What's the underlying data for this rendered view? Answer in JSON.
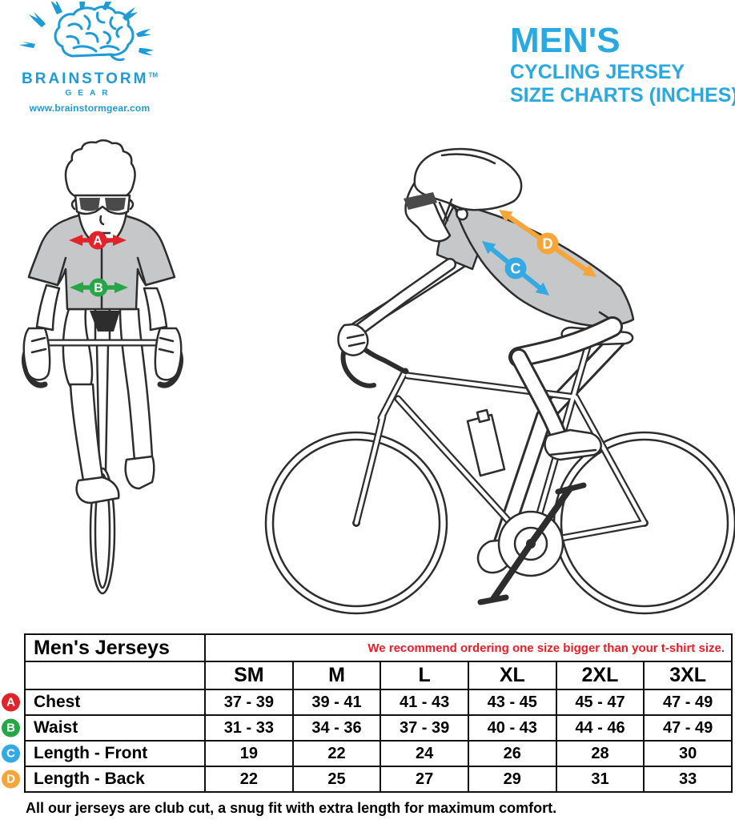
{
  "logo": {
    "brand": "BRAINSTORM",
    "tm": "TM",
    "gear": "GEAR",
    "url": "www.brainstormgear.com"
  },
  "title": {
    "line1": "MEN'S",
    "line2": "CYCLING JERSEY",
    "line3": "SIZE CHARTS (INCHES)"
  },
  "colors": {
    "logo_blue": "#1d9bd7",
    "title_blue": "#29a9e0",
    "note_red": "#ed1c24",
    "jersey": "#c6c7c9",
    "line": "#2d2d2d"
  },
  "measurements": [
    {
      "letter": "A",
      "name": "Chest",
      "color": "#e1232a"
    },
    {
      "letter": "B",
      "name": "Waist",
      "color": "#26a647"
    },
    {
      "letter": "C",
      "name": "Length - Front",
      "color": "#35aae2"
    },
    {
      "letter": "D",
      "name": "Length - Back",
      "color": "#f5a63b"
    }
  ],
  "table": {
    "title": "Men's Jerseys",
    "note": "We recommend ordering one size bigger than your t-shirt size.",
    "sizes": [
      "SM",
      "M",
      "L",
      "XL",
      "2XL",
      "3XL"
    ],
    "rows": [
      {
        "letter": "A",
        "label": "Chest",
        "values": [
          "37 - 39",
          "39 - 41",
          "41 - 43",
          "43 - 45",
          "45 - 47",
          "47 - 49"
        ]
      },
      {
        "letter": "B",
        "label": "Waist",
        "values": [
          "31 - 33",
          "34 - 36",
          "37 - 39",
          "40 - 43",
          "44 - 46",
          "47 - 49"
        ]
      },
      {
        "letter": "C",
        "label": "Length - Front",
        "values": [
          "19",
          "22",
          "24",
          "26",
          "28",
          "30"
        ]
      },
      {
        "letter": "D",
        "label": "Length - Back",
        "values": [
          "22",
          "25",
          "27",
          "29",
          "31",
          "33"
        ]
      }
    ]
  },
  "footer": "All our jerseys are club cut, a snug fit with extra length for maximum comfort."
}
